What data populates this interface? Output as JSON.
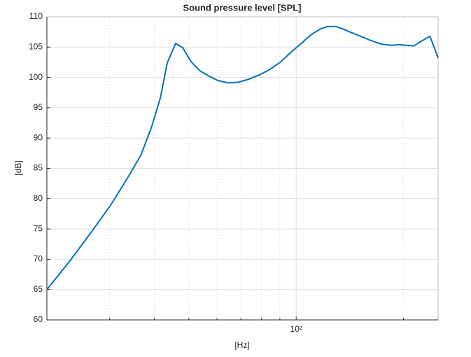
{
  "chart_data": {
    "type": "line",
    "title": "Sound pressure level [SPL]",
    "x_label": "[Hz]",
    "y_label": "[dB]",
    "x": [
      20,
      23.4,
      26.8,
      30,
      33.5,
      36.7,
      39.3,
      41.6,
      43.5,
      45.9,
      48.1,
      50.7,
      53.7,
      57.0,
      60.2,
      64.4,
      68.8,
      73.6,
      78.8,
      84.3,
      90.2,
      96.5,
      103.2,
      110.4,
      117.0,
      122.5,
      129.2,
      135.2,
      141.4,
      151.3,
      161.9,
      173.1,
      185.2,
      194.1,
      202.8,
      213.8,
      221.6,
      237.2,
      250
    ],
    "series": [
      {
        "name": "SPL",
        "color": "#0072bd",
        "values": [
          65.0,
          70.0,
          74.7,
          78.7,
          83.2,
          87.2,
          91.8,
          96.6,
          102.4,
          105.6,
          104.9,
          102.6,
          101.1,
          100.2,
          99.5,
          99.1,
          99.2,
          99.7,
          100.4,
          101.3,
          102.5,
          104.1,
          105.6,
          107.1,
          108.0,
          108.4,
          108.4,
          108.0,
          107.5,
          106.8,
          106.1,
          105.5,
          105.3,
          105.4,
          105.3,
          105.2,
          105.8,
          106.8,
          103.2
        ]
      }
    ],
    "xscale": "log",
    "xlim": [
      20,
      250
    ],
    "xticks": [
      {
        "value": 100,
        "label": "10²"
      }
    ],
    "xminorticks": [
      30,
      40,
      50,
      60,
      70,
      80,
      90,
      200
    ],
    "ylim": [
      60,
      110
    ],
    "yticks": [
      60,
      65,
      70,
      75,
      80,
      85,
      90,
      95,
      100,
      105,
      110
    ],
    "grid": true
  }
}
